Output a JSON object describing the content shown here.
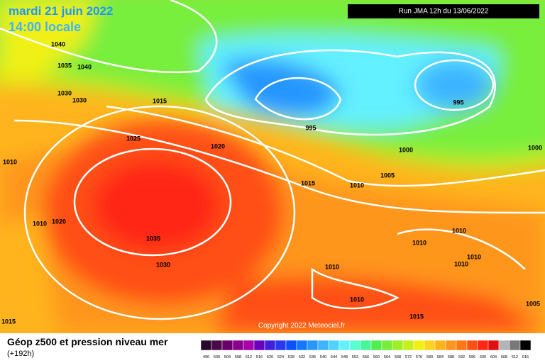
{
  "header": {
    "date": "mardi 21 juin 2022",
    "time": "14:00 locale",
    "run": "Run JMA 12h du 13/06/2022"
  },
  "footer": {
    "title": "Géop z500 et pression niveau mer",
    "lead": "(+192h)",
    "copyright": "Copyright 2022 Meteociel.fr"
  },
  "map": {
    "isobar_labels": [
      1040,
      1035,
      1040,
      1030,
      1030,
      1015,
      1025,
      1020,
      995,
      995,
      1000,
      1005,
      1000,
      1010,
      1015,
      1010,
      1020,
      1010,
      1035,
      1030,
      1010,
      1010,
      1010,
      1010,
      1010,
      1005,
      1015,
      1015,
      1010
    ]
  },
  "scale": {
    "steps": [
      {
        "value": 496,
        "color": "#2a0a2a"
      },
      {
        "value": 500,
        "color": "#4a0a4a"
      },
      {
        "value": 504,
        "color": "#6a006a"
      },
      {
        "value": 508,
        "color": "#8a008a"
      },
      {
        "value": 512,
        "color": "#a800a8"
      },
      {
        "value": 516,
        "color": "#6a00c0"
      },
      {
        "value": 520,
        "color": "#4020d8"
      },
      {
        "value": 524,
        "color": "#2838ee"
      },
      {
        "value": 528,
        "color": "#0a50ff"
      },
      {
        "value": 532,
        "color": "#1478ff"
      },
      {
        "value": 536,
        "color": "#2896ff"
      },
      {
        "value": 540,
        "color": "#3cb4ff"
      },
      {
        "value": 544,
        "color": "#50d2ff"
      },
      {
        "value": 548,
        "color": "#64f0ff"
      },
      {
        "value": 552,
        "color": "#5affd0"
      },
      {
        "value": 556,
        "color": "#46f79a"
      },
      {
        "value": 560,
        "color": "#50ee50"
      },
      {
        "value": 564,
        "color": "#78ee3c"
      },
      {
        "value": 568,
        "color": "#a0ee28"
      },
      {
        "value": 572,
        "color": "#c8ee1e"
      },
      {
        "value": 576,
        "color": "#f0f014"
      },
      {
        "value": 580,
        "color": "#ffd21e"
      },
      {
        "value": 584,
        "color": "#ffb41e"
      },
      {
        "value": 588,
        "color": "#ff961e"
      },
      {
        "value": 592,
        "color": "#ff7814"
      },
      {
        "value": 596,
        "color": "#ff5014"
      },
      {
        "value": 600,
        "color": "#ff2814"
      },
      {
        "value": 604,
        "color": "#e01010"
      },
      {
        "value": 608,
        "color": "#b4b4b4"
      },
      {
        "value": 612,
        "color": "#787878"
      },
      {
        "value": 616,
        "color": "#000000"
      }
    ]
  }
}
